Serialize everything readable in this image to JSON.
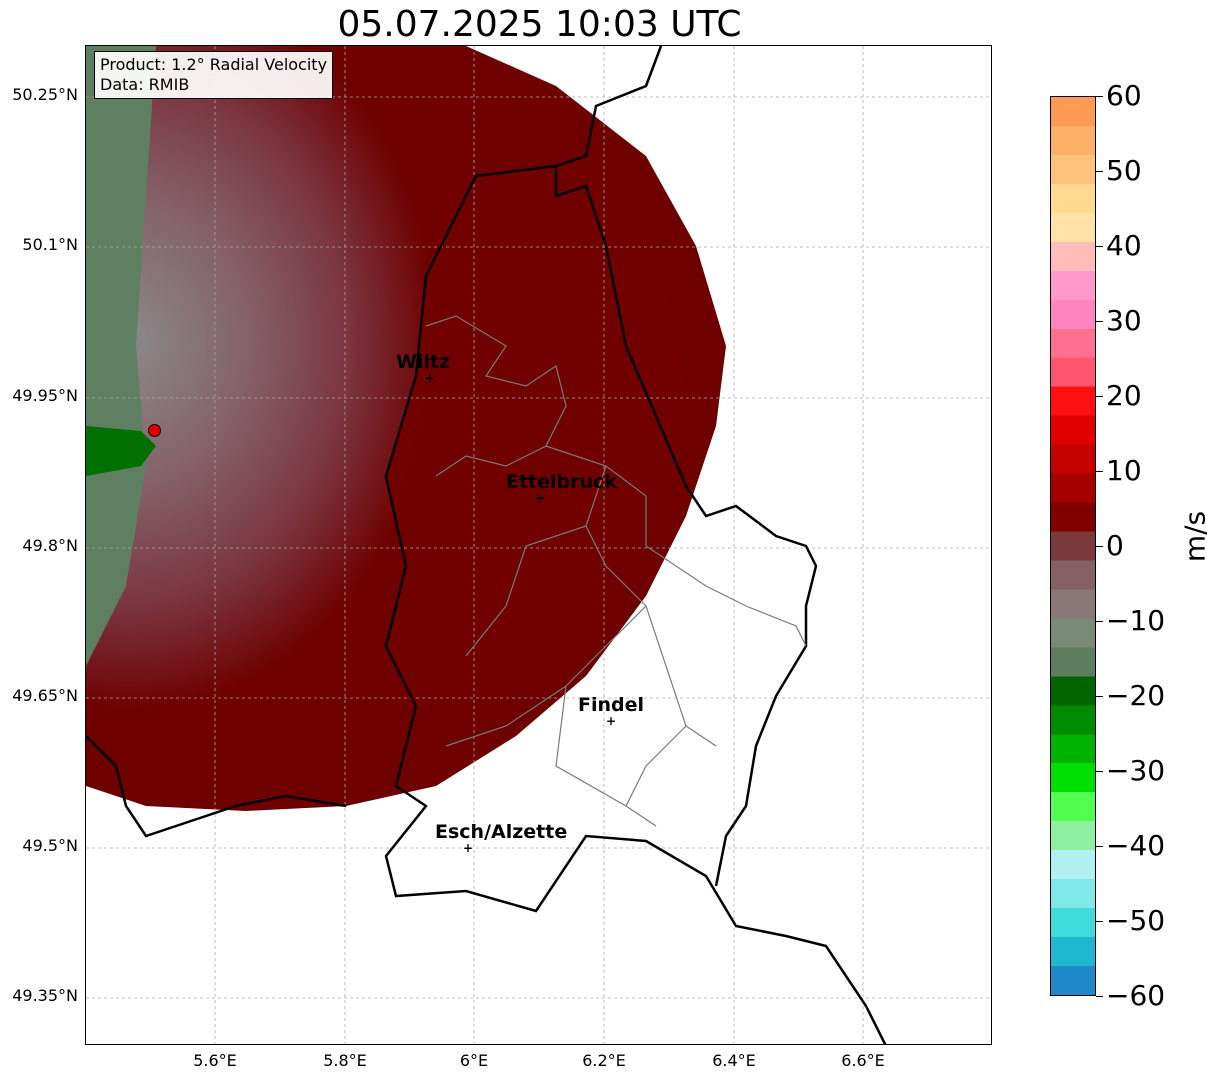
{
  "title": "05.07.2025 10:03 UTC",
  "info": {
    "product": "Product: 1.2° Radial Velocity",
    "source": "Data: RMIB"
  },
  "map": {
    "lon_range": [
      5.4,
      6.8
    ],
    "lat_range": [
      49.3,
      50.3
    ],
    "lat_ticks": [
      "50.25°N",
      "50.1°N",
      "49.95°N",
      "49.8°N",
      "49.65°N",
      "49.5°N",
      "49.35°N"
    ],
    "lon_ticks": [
      "5.6°E",
      "5.8°E",
      "6°E",
      "6.2°E",
      "6.4°E",
      "6.6°E"
    ],
    "radar_site": {
      "lon": 5.505,
      "lat": 49.914
    },
    "cities": [
      {
        "name": "Wiltz",
        "lon": 5.93,
        "lat": 49.966
      },
      {
        "name": "Ettelbruck",
        "lon": 6.1,
        "lat": 49.847
      },
      {
        "name": "Findel",
        "lon": 6.21,
        "lat": 49.624
      },
      {
        "name": "Esch/Alzette",
        "lon": 5.99,
        "lat": 49.497
      }
    ]
  },
  "colorbar": {
    "unit": "m/s",
    "ticks": [
      "60",
      "50",
      "40",
      "30",
      "20",
      "10",
      "0",
      "−10",
      "−20",
      "−30",
      "−40",
      "−50",
      "−60"
    ],
    "colors": [
      "#ff9a55",
      "#ffb068",
      "#ffc27c",
      "#ffd98f",
      "#ffe3a6",
      "#ffbcb9",
      "#ff9acb",
      "#ff85c0",
      "#ff6f8f",
      "#ff5570",
      "#ff0f0f",
      "#e00000",
      "#c40000",
      "#a50000",
      "#800000",
      "#7a3a3a",
      "#856065",
      "#8a7878",
      "#7a8a78",
      "#5e7e5e",
      "#006400",
      "#008a00",
      "#00b200",
      "#00e000",
      "#50ff50",
      "#8cf0a0",
      "#b0f0f0",
      "#80e8e8",
      "#40dcdc",
      "#20b8d0",
      "#1e88c8"
    ]
  }
}
